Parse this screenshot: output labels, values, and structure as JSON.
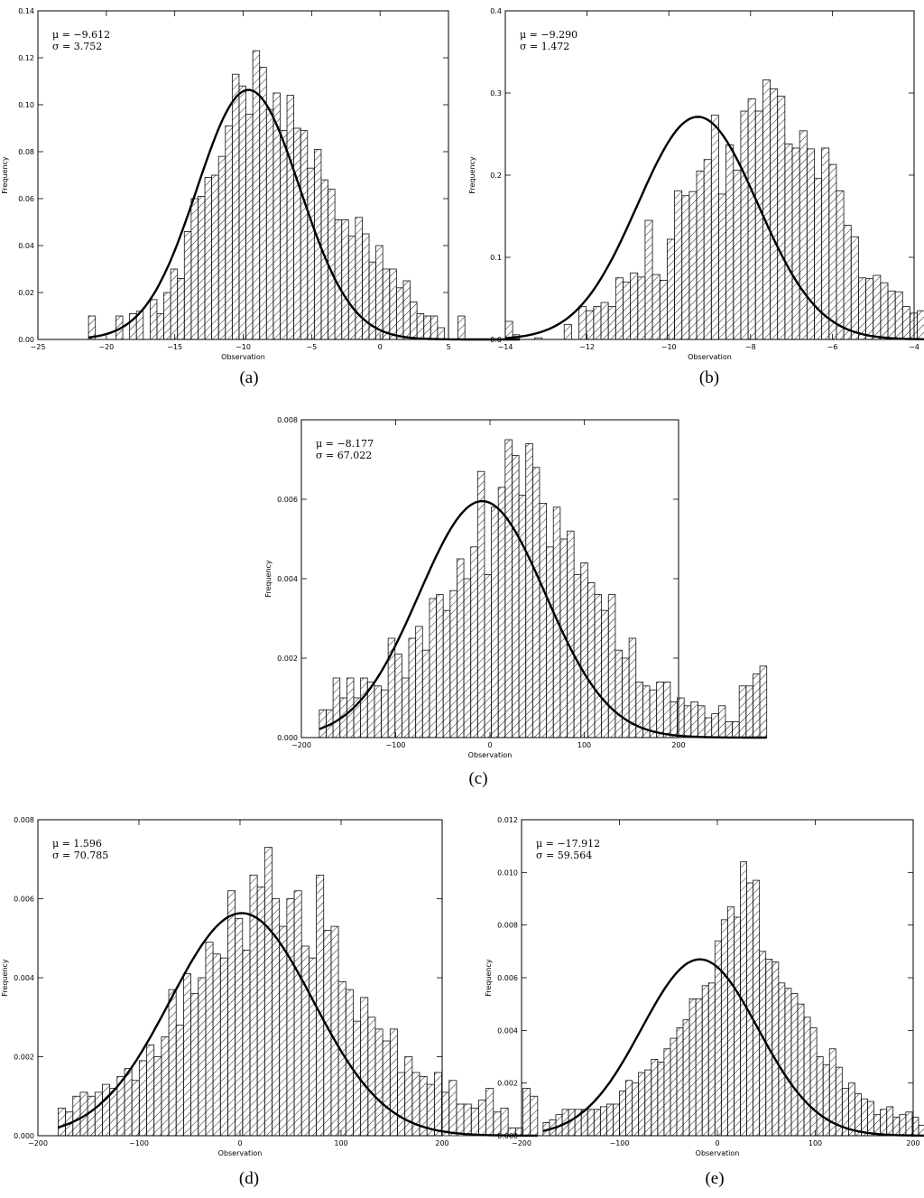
{
  "figure": {
    "panels": [
      {
        "id": "a",
        "caption": "(a)",
        "stats": [
          "μ = −9.612",
          "σ = 3.752"
        ]
      },
      {
        "id": "b",
        "caption": "(b)",
        "stats": [
          "μ = −9.290",
          "σ = 1.472"
        ]
      },
      {
        "id": "c",
        "caption": "(c)",
        "stats": [
          "μ = −8.177",
          "σ = 67.022"
        ]
      },
      {
        "id": "d",
        "caption": "(d)",
        "stats": [
          "μ = 1.596",
          "σ = 70.785"
        ]
      },
      {
        "id": "e",
        "caption": "(e)",
        "stats": [
          "μ = −17.912",
          "σ = 59.564"
        ]
      }
    ]
  },
  "chart_data": [
    {
      "type": "bar",
      "title": "",
      "caption": "(a)",
      "xlabel": "Observation",
      "ylabel": "Frequency",
      "xlim": [
        -25,
        5
      ],
      "ylim": [
        0,
        0.14
      ],
      "xticks": [
        -25,
        -20,
        -15,
        -10,
        -5,
        0,
        5
      ],
      "xtick_labels": [
        "−25",
        "−20",
        "−15",
        "−10",
        "−5",
        "0",
        "5"
      ],
      "yticks": [
        0,
        0.02,
        0.04,
        0.06,
        0.08,
        0.1,
        0.12,
        0.14
      ],
      "ytick_labels": [
        "0.00",
        "0.02",
        "0.04",
        "0.06",
        "0.08",
        "0.10",
        "0.12",
        "0.14"
      ],
      "mu": -9.612,
      "sigma": 3.752,
      "fit": "normal",
      "bins": {
        "start": -21.3,
        "width": 0.5,
        "values": [
          0.01,
          0,
          0,
          0,
          0.01,
          0,
          0.011,
          0.012,
          0,
          0.017,
          0.011,
          0.02,
          0.03,
          0.026,
          0.046,
          0.06,
          0.061,
          0.069,
          0.07,
          0.078,
          0.091,
          0.113,
          0.108,
          0.096,
          0.123,
          0.116,
          0.098,
          0.105,
          0.089,
          0.104,
          0.09,
          0.089,
          0.073,
          0.081,
          0.068,
          0.064,
          0.051,
          0.051,
          0.044,
          0.052,
          0.045,
          0.033,
          0.04,
          0.03,
          0.03,
          0.022,
          0.025,
          0.016,
          0.011,
          0.01,
          0.01,
          0.005,
          0,
          0,
          0.01,
          0,
          0,
          0,
          0,
          0,
          0,
          0,
          0.002
        ]
      }
    },
    {
      "type": "bar",
      "title": "",
      "caption": "(b)",
      "xlabel": "Observation",
      "ylabel": "Frequency",
      "xlim": [
        -14,
        -4
      ],
      "ylim": [
        0,
        0.4
      ],
      "xticks": [
        -14,
        -12,
        -10,
        -8,
        -6,
        -4
      ],
      "xtick_labels": [
        "−14",
        "−12",
        "−10",
        "−8",
        "−6",
        "−4"
      ],
      "yticks": [
        0,
        0.1,
        0.2,
        0.3,
        0.4
      ],
      "ytick_labels": [
        "0.0",
        "0.1",
        "0.2",
        "0.3",
        "0.4"
      ],
      "mu": -9.29,
      "sigma": 1.472,
      "fit": "normal",
      "bins": {
        "start": -14.0,
        "width": 0.18,
        "values": [
          0.022,
          0,
          0,
          0,
          0.002,
          0,
          0,
          0,
          0.018,
          0,
          0.04,
          0.035,
          0.04,
          0.045,
          0.04,
          0.075,
          0.07,
          0.081,
          0.076,
          0.145,
          0.079,
          0.072,
          0.122,
          0.181,
          0.175,
          0.18,
          0.205,
          0.219,
          0.273,
          0.177,
          0.237,
          0.206,
          0.278,
          0.293,
          0.278,
          0.316,
          0.305,
          0.296,
          0.238,
          0.233,
          0.254,
          0.232,
          0.196,
          0.233,
          0.213,
          0.181,
          0.139,
          0.125,
          0.075,
          0.074,
          0.078,
          0.069,
          0.059,
          0.058,
          0.04,
          0.032,
          0.035,
          0.01,
          0.026,
          0,
          0.01,
          0,
          0,
          0,
          0.018
        ]
      }
    },
    {
      "type": "bar",
      "title": "",
      "caption": "(c)",
      "xlabel": "Observation",
      "ylabel": "Frequency",
      "xlim": [
        -200,
        200
      ],
      "ylim": [
        0,
        0.008
      ],
      "xticks": [
        -200,
        -100,
        0,
        100,
        200
      ],
      "xtick_labels": [
        "−200",
        "−100",
        "0",
        "100",
        "200"
      ],
      "yticks": [
        0,
        0.002,
        0.004,
        0.006,
        0.008
      ],
      "ytick_labels": [
        "0.000",
        "0.002",
        "0.004",
        "0.006",
        "0.008"
      ],
      "mu": -8.177,
      "sigma": 67.022,
      "fit": "normal",
      "bins": {
        "start": -181,
        "width": 7.3,
        "values": [
          0.0007,
          0.0007,
          0.0015,
          0.001,
          0.0015,
          0.001,
          0.0015,
          0.0014,
          0.0013,
          0.0012,
          0.0025,
          0.0021,
          0.0015,
          0.0025,
          0.0028,
          0.0022,
          0.0035,
          0.0036,
          0.0032,
          0.0037,
          0.0045,
          0.004,
          0.0048,
          0.0067,
          0.0041,
          0.0058,
          0.0063,
          0.0075,
          0.0071,
          0.0061,
          0.0074,
          0.0068,
          0.0059,
          0.0048,
          0.0058,
          0.005,
          0.0052,
          0.0041,
          0.0044,
          0.0039,
          0.0036,
          0.0032,
          0.0036,
          0.0022,
          0.002,
          0.0025,
          0.0014,
          0.0013,
          0.0012,
          0.0014,
          0.0014,
          0.0009,
          0.001,
          0.0008,
          0.0009,
          0.0008,
          0.0005,
          0.0006,
          0.0008,
          0.0004,
          0.0004,
          0.0013,
          0.0013,
          0.0016,
          0.0018
        ]
      }
    },
    {
      "type": "bar",
      "title": "",
      "caption": "(d)",
      "xlabel": "Observation",
      "ylabel": "Frequency",
      "xlim": [
        -200,
        200
      ],
      "ylim": [
        0,
        0.008
      ],
      "xticks": [
        -200,
        -100,
        0,
        100,
        200
      ],
      "xtick_labels": [
        "−200",
        "−100",
        "0",
        "100",
        "200"
      ],
      "yticks": [
        0,
        0.002,
        0.004,
        0.006,
        0.008
      ],
      "ytick_labels": [
        "0.000",
        "0.002",
        "0.004",
        "0.006",
        "0.008"
      ],
      "mu": 1.596,
      "sigma": 70.785,
      "fit": "normal",
      "bins": {
        "start": -180,
        "width": 7.3,
        "values": [
          0.0007,
          0.0006,
          0.001,
          0.0011,
          0.001,
          0.0011,
          0.0013,
          0.0012,
          0.0015,
          0.0017,
          0.0014,
          0.0019,
          0.0023,
          0.002,
          0.0025,
          0.0037,
          0.0028,
          0.0041,
          0.0036,
          0.004,
          0.0049,
          0.0046,
          0.0045,
          0.0062,
          0.0055,
          0.0047,
          0.0066,
          0.0063,
          0.0073,
          0.006,
          0.0053,
          0.006,
          0.0062,
          0.0048,
          0.0045,
          0.0066,
          0.0052,
          0.0053,
          0.0039,
          0.0037,
          0.0029,
          0.0035,
          0.003,
          0.0027,
          0.0024,
          0.0027,
          0.0016,
          0.002,
          0.0016,
          0.0015,
          0.0013,
          0.0016,
          0.0011,
          0.0014,
          0.0008,
          0.0008,
          0.0007,
          0.0009,
          0.0012,
          0.0006,
          0.0007,
          0.0002,
          0.0002,
          0.0012,
          0.001
        ]
      }
    },
    {
      "type": "bar",
      "title": "",
      "caption": "(e)",
      "xlabel": "Observation",
      "ylabel": "Frequency",
      "xlim": [
        -200,
        200
      ],
      "ylim": [
        0,
        0.012
      ],
      "xticks": [
        -200,
        -100,
        0,
        100,
        200
      ],
      "xtick_labels": [
        "−200",
        "−100",
        "0",
        "100",
        "200"
      ],
      "yticks": [
        0,
        0.002,
        0.004,
        0.006,
        0.008,
        0.01,
        0.012
      ],
      "ytick_labels": [
        "0.000",
        "0.002",
        "0.004",
        "0.006",
        "0.008",
        "0.010",
        "0.012"
      ],
      "mu": -17.912,
      "sigma": 59.564,
      "fit": "normal",
      "bins": {
        "start": -178,
        "width": 6.5,
        "values": [
          0.0005,
          0.0006,
          0.0008,
          0.001,
          0.001,
          0.001,
          0.001,
          0.001,
          0.001,
          0.0011,
          0.0012,
          0.0012,
          0.0017,
          0.0021,
          0.002,
          0.0024,
          0.0025,
          0.0029,
          0.0028,
          0.0033,
          0.0037,
          0.0041,
          0.0044,
          0.0052,
          0.0052,
          0.0057,
          0.0058,
          0.0074,
          0.0082,
          0.0087,
          0.0083,
          0.0104,
          0.0096,
          0.0097,
          0.007,
          0.0067,
          0.0066,
          0.0058,
          0.0056,
          0.0054,
          0.005,
          0.0045,
          0.0041,
          0.003,
          0.0027,
          0.0033,
          0.0026,
          0.0018,
          0.002,
          0.0016,
          0.0014,
          0.0013,
          0.0008,
          0.001,
          0.0011,
          0.0007,
          0.0008,
          0.0009,
          0.0007,
          0.0004,
          0.0004,
          0.0007,
          0.001,
          0.001,
          0.001
        ]
      }
    }
  ]
}
